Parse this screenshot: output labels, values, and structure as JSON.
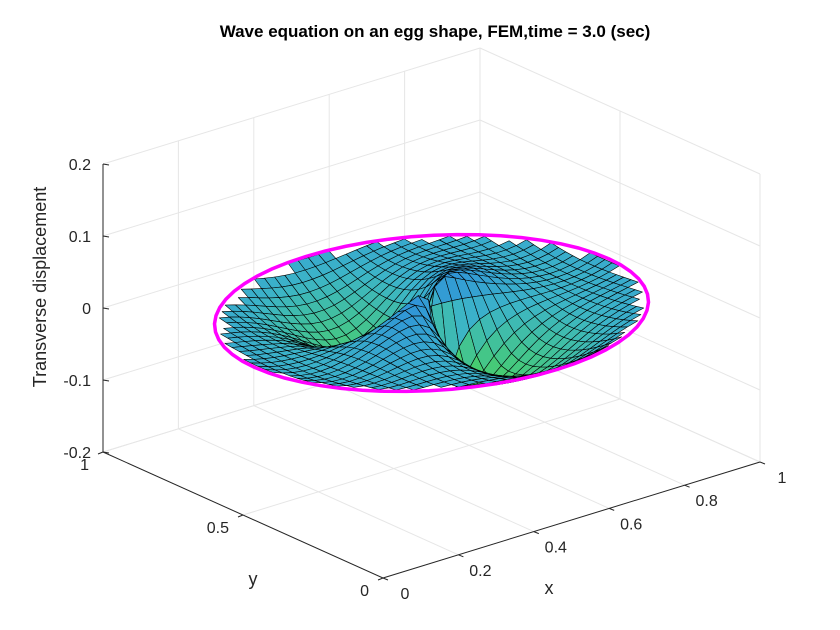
{
  "chart_data": {
    "type": "surface",
    "title": "Wave equation on an egg shape, FEM,time =  3.0 (sec)",
    "xlabel": "x",
    "ylabel": "y",
    "zlabel": "Transverse displacement",
    "xlim": [
      0,
      1
    ],
    "ylim": [
      0,
      1
    ],
    "zlim": [
      -0.2,
      0.2
    ],
    "x_ticks": [
      "0",
      "0.2",
      "0.4",
      "0.6",
      "0.8",
      "1"
    ],
    "y_ticks": [
      "0",
      "0.5",
      "1"
    ],
    "z_ticks": [
      "-0.2",
      "-0.1",
      "0",
      "0.1",
      "0.2"
    ],
    "grid": true,
    "colormap": "parula-like (green to blue)",
    "boundary": {
      "shape": "egg (ellipse)",
      "color": "#ff00ff"
    },
    "surface_samples": [
      {
        "x": 0.2,
        "y": 0.5,
        "z": -0.05
      },
      {
        "x": 0.5,
        "y": 0.5,
        "z": -0.01
      },
      {
        "x": 0.5,
        "y": 0.35,
        "z": -0.09
      },
      {
        "x": 0.5,
        "y": 0.65,
        "z": 0.02
      },
      {
        "x": 0.8,
        "y": 0.5,
        "z": 0.01
      }
    ],
    "colors": {
      "surface_low": "#3ecf6a",
      "surface_high": "#2f8fe0",
      "mesh": "#000000",
      "boundary": "#ff00ff"
    }
  }
}
